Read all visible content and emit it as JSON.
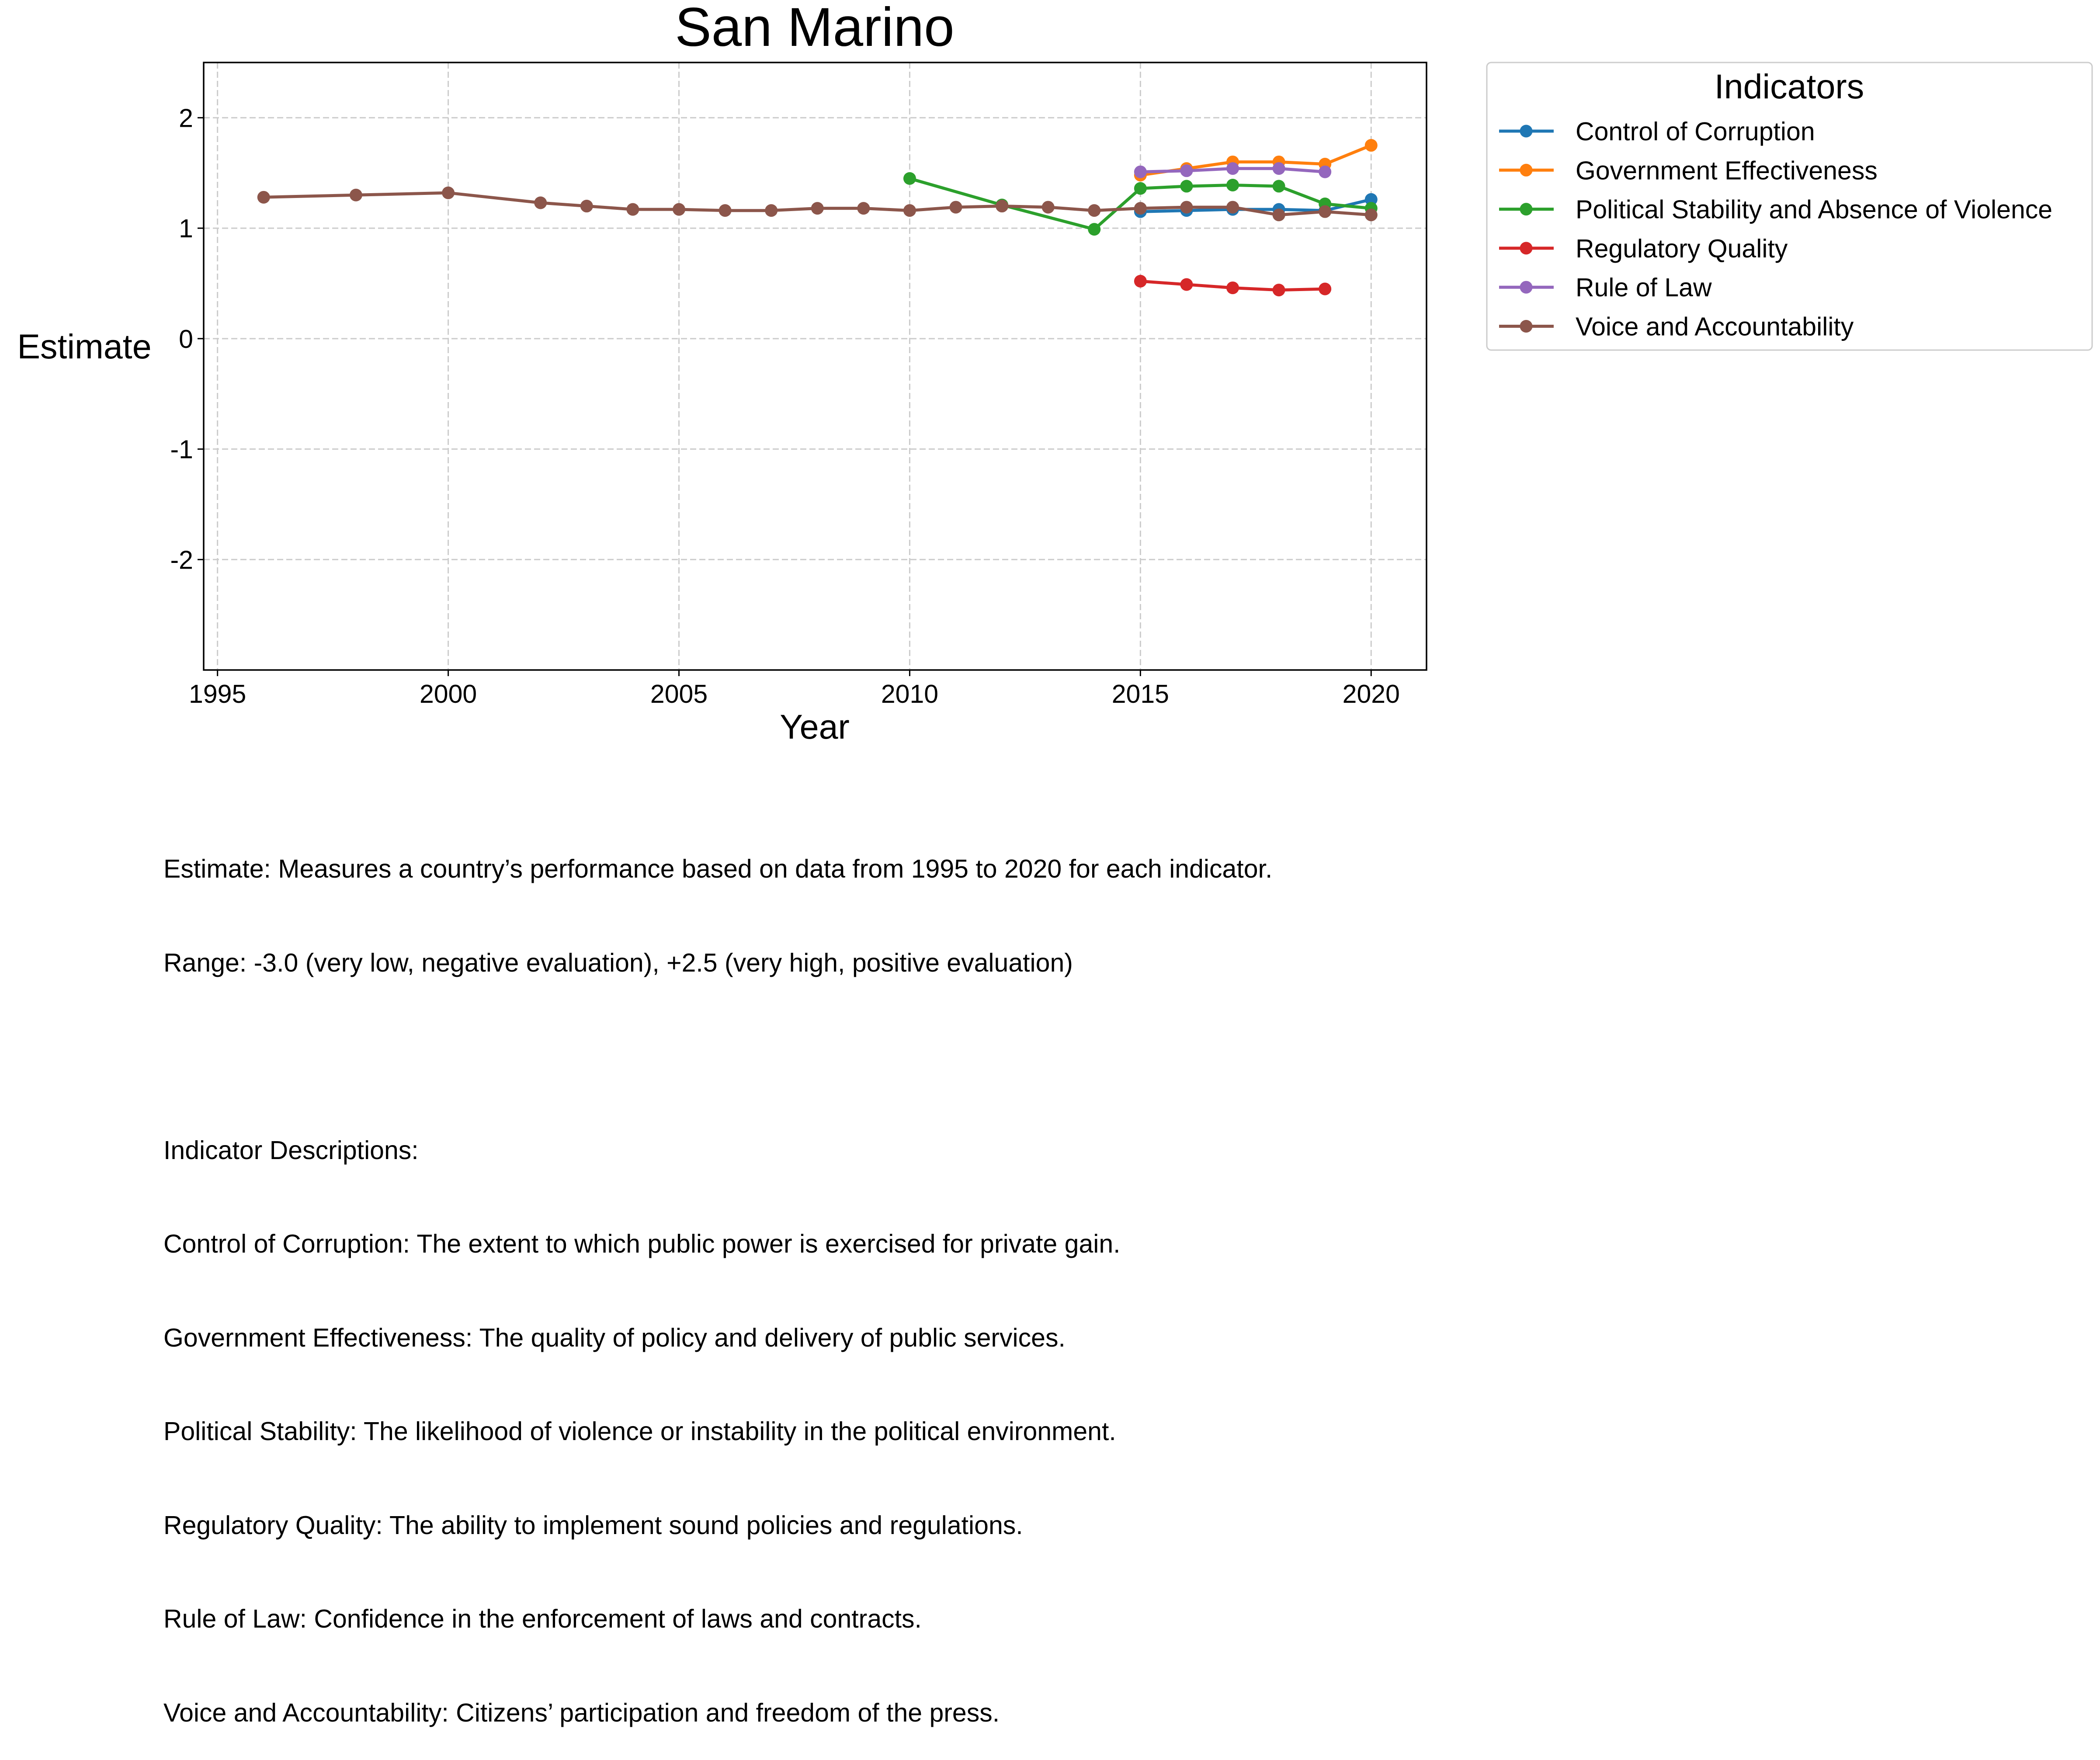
{
  "chart_data": {
    "type": "line",
    "title": "San Marino",
    "xlabel": "Year",
    "ylabel": "Estimate",
    "xlim": [
      1994.7,
      2021.2
    ],
    "ylim": [
      -3.0,
      2.5
    ],
    "x_ticks": [
      1995,
      2000,
      2005,
      2010,
      2015,
      2020
    ],
    "y_ticks": [
      -2,
      -1,
      0,
      1,
      2
    ],
    "y_tick_labels": [
      "-2",
      "-1",
      "0",
      "1",
      "2"
    ],
    "grid": true,
    "legend_title": "Indicators",
    "legend_position": "outside-top-right",
    "series": [
      {
        "name": "Control of Corruption",
        "color": "#1f77b4",
        "x": [
          2015,
          2016,
          2017,
          2018,
          2019,
          2020
        ],
        "y": [
          1.15,
          1.16,
          1.17,
          1.17,
          1.16,
          1.26
        ]
      },
      {
        "name": "Government Effectiveness",
        "color": "#ff7f0e",
        "x": [
          2015,
          2016,
          2017,
          2018,
          2019,
          2020
        ],
        "y": [
          1.48,
          1.54,
          1.6,
          1.6,
          1.58,
          1.75
        ]
      },
      {
        "name": "Political Stability and Absence of Violence",
        "color": "#2ca02c",
        "x": [
          2010,
          2012,
          2014,
          2015,
          2016,
          2017,
          2018,
          2019,
          2020
        ],
        "y": [
          1.45,
          1.21,
          0.99,
          1.36,
          1.38,
          1.39,
          1.38,
          1.22,
          1.18
        ]
      },
      {
        "name": "Regulatory Quality",
        "color": "#d62728",
        "x": [
          2015,
          2016,
          2017,
          2018,
          2019
        ],
        "y": [
          0.52,
          0.49,
          0.46,
          0.44,
          0.45
        ]
      },
      {
        "name": "Rule of Law",
        "color": "#9467bd",
        "x": [
          2015,
          2016,
          2017,
          2018,
          2019
        ],
        "y": [
          1.51,
          1.52,
          1.54,
          1.54,
          1.51
        ]
      },
      {
        "name": "Voice and Accountability",
        "color": "#8c564b",
        "x": [
          1996,
          1998,
          2000,
          2002,
          2003,
          2004,
          2005,
          2006,
          2007,
          2008,
          2009,
          2010,
          2011,
          2012,
          2013,
          2014,
          2015,
          2016,
          2017,
          2018,
          2019,
          2020
        ],
        "y": [
          1.28,
          1.3,
          1.32,
          1.23,
          1.2,
          1.17,
          1.17,
          1.16,
          1.16,
          1.18,
          1.18,
          1.16,
          1.19,
          1.2,
          1.19,
          1.16,
          1.18,
          1.19,
          1.19,
          1.12,
          1.15,
          1.12
        ]
      }
    ]
  },
  "notes": [
    "Estimate: Measures a country’s performance based on data from 1995 to 2020 for each indicator.",
    "Range: -3.0 (very low, negative evaluation), +2.5 (very high, positive evaluation)",
    "",
    "Indicator Descriptions:",
    "Control of Corruption: The extent to which public power is exercised for private gain.",
    "Government Effectiveness: The quality of policy and delivery of public services.",
    "Political Stability: The likelihood of violence or instability in the political environment.",
    "Regulatory Quality: The ability to implement sound policies and regulations.",
    "Rule of Law: Confidence in the enforcement of laws and contracts.",
    "Voice and Accountability: Citizens’ participation and freedom of the press."
  ]
}
